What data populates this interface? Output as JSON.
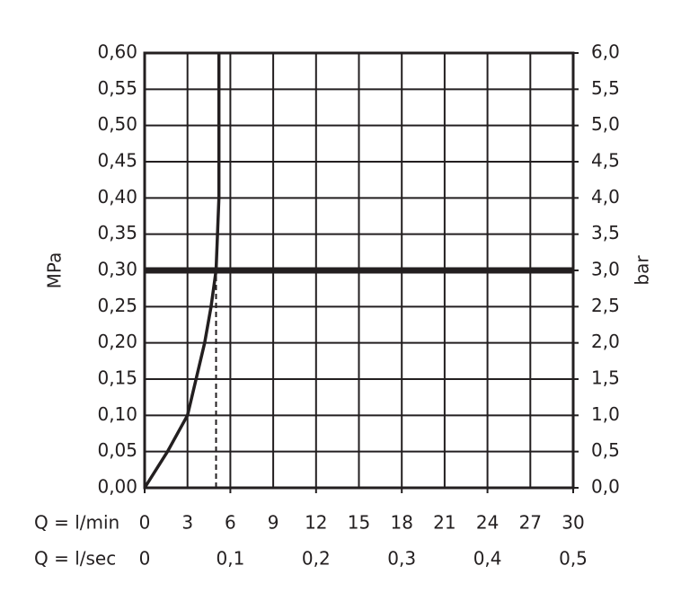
{
  "chart_data": {
    "type": "line",
    "ylabel": "MPa",
    "y2label": "bar",
    "xlabel": "Q = l/min",
    "x2label": "Q = l/sec",
    "xlim": [
      0,
      30
    ],
    "xticks": [
      0,
      3,
      6,
      9,
      12,
      15,
      18,
      21,
      24,
      27,
      30
    ],
    "x2lim": [
      0,
      0.5
    ],
    "x2ticks": [
      0,
      {
        "value": 0.1,
        "label": "0,1"
      },
      {
        "value": 0.2,
        "label": "0,2"
      },
      {
        "value": 0.3,
        "label": "0,3"
      },
      {
        "value": 0.4,
        "label": "0,4"
      },
      {
        "value": 0.5,
        "label": "0,5"
      }
    ],
    "ylim": [
      0,
      0.6
    ],
    "yticks": [
      {
        "value": 0,
        "label": "0,00"
      },
      {
        "value": 0.05,
        "label": "0,05"
      },
      {
        "value": 0.1,
        "label": "0,10"
      },
      {
        "value": 0.15,
        "label": "0,15"
      },
      {
        "value": 0.2,
        "label": "0,20"
      },
      {
        "value": 0.25,
        "label": "0,25"
      },
      {
        "value": 0.3,
        "label": "0,30"
      },
      {
        "value": 0.35,
        "label": "0,35"
      },
      {
        "value": 0.4,
        "label": "0,40"
      },
      {
        "value": 0.45,
        "label": "0,45"
      },
      {
        "value": 0.5,
        "label": "0,50"
      },
      {
        "value": 0.55,
        "label": "0,55"
      },
      {
        "value": 0.6,
        "label": "0,60"
      }
    ],
    "y2lim": [
      0,
      6
    ],
    "y2ticks": [
      {
        "value": 0,
        "label": "0,0"
      },
      {
        "value": 0.5,
        "label": "0,5"
      },
      {
        "value": 1,
        "label": "1,0"
      },
      {
        "value": 1.5,
        "label": "1,5"
      },
      {
        "value": 2,
        "label": "2,0"
      },
      {
        "value": 2.5,
        "label": "2,5"
      },
      {
        "value": 3,
        "label": "3,0"
      },
      {
        "value": 3.5,
        "label": "3,5"
      },
      {
        "value": 4,
        "label": "4,0"
      },
      {
        "value": 4.5,
        "label": "4,5"
      },
      {
        "value": 5,
        "label": "5,0"
      },
      {
        "value": 5.5,
        "label": "5,5"
      },
      {
        "value": 6,
        "label": "6,0"
      }
    ],
    "grid": true,
    "series": [
      {
        "color": "#231f20",
        "x": [
          0,
          1.6,
          3,
          4.2,
          4.65,
          5.0,
          5.2,
          5.2
        ],
        "values": [
          0,
          0.05,
          0.1,
          0.2,
          0.25,
          0.3,
          0.4,
          0.6
        ]
      }
    ],
    "hlines": [
      {
        "value": 0.3,
        "color": "#231f20"
      }
    ],
    "vlines": [
      {
        "value": 5.0,
        "ymax": 0.3,
        "dashed": true,
        "color": "#231f20"
      }
    ]
  }
}
